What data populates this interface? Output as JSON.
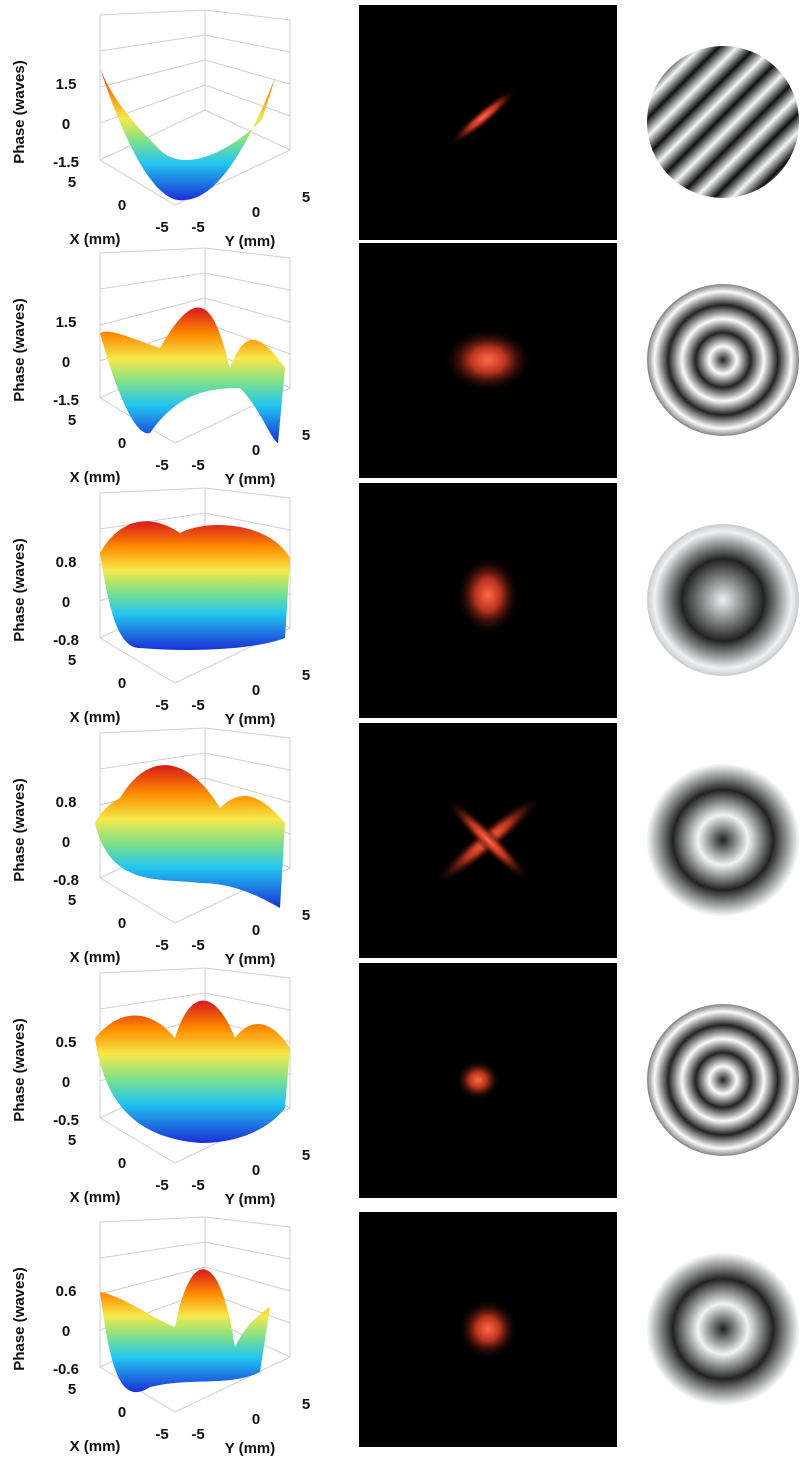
{
  "rows": [
    {
      "zlabel": "Phase (waves)",
      "zticks": [
        1.5,
        0,
        -1.5
      ],
      "xlabel": "X (mm)",
      "xticks": [
        5,
        0,
        -5
      ],
      "ylabel": "Y (mm)",
      "yticks": [
        -5,
        0,
        5
      ]
    },
    {
      "zlabel": "Phase (waves)",
      "zticks": [
        1.5,
        0,
        -1.5
      ],
      "xlabel": "X (mm)",
      "xticks": [
        5,
        0,
        -5
      ],
      "ylabel": "Y (mm)",
      "yticks": [
        -5,
        0,
        5
      ]
    },
    {
      "zlabel": "Phase (waves)",
      "zticks": [
        0.8,
        0,
        -0.8
      ],
      "xlabel": "X (mm)",
      "xticks": [
        5,
        0,
        -5
      ],
      "ylabel": "Y (mm)",
      "yticks": [
        -5,
        0,
        5
      ]
    },
    {
      "zlabel": "Phase (waves)",
      "zticks": [
        0.8,
        0,
        -0.8
      ],
      "xlabel": "X (mm)",
      "xticks": [
        5,
        0,
        -5
      ],
      "ylabel": "Y (mm)",
      "yticks": [
        -5,
        0,
        5
      ]
    },
    {
      "zlabel": "Phase (waves)",
      "zticks": [
        0.5,
        0,
        -0.5
      ],
      "xlabel": "X (mm)",
      "xticks": [
        5,
        0,
        -5
      ],
      "ylabel": "Y (mm)",
      "yticks": [
        -5,
        0,
        5
      ]
    },
    {
      "zlabel": "Phase (waves)",
      "zticks": [
        0.6,
        0,
        -0.6
      ],
      "xlabel": "X (mm)",
      "xticks": [
        5,
        0,
        -5
      ],
      "ylabel": "Y (mm)",
      "yticks": [
        -5,
        0,
        5
      ]
    }
  ]
}
